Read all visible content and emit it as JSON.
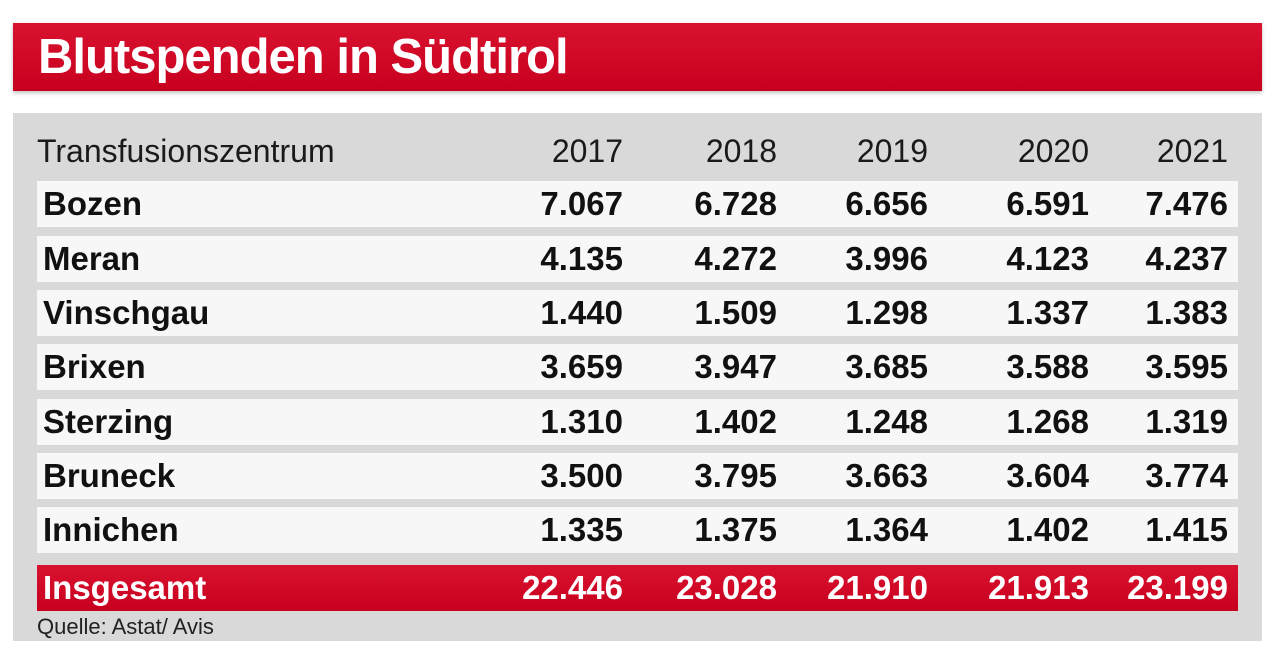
{
  "title": "Blutspenden in Südtirol",
  "header": {
    "label": "Transfusionszentrum",
    "years": [
      "2017",
      "2018",
      "2019",
      "2020",
      "2021"
    ]
  },
  "rows": [
    {
      "label": "Bozen",
      "values": [
        "7.067",
        "6.728",
        "6.656",
        "6.591",
        "7.476"
      ]
    },
    {
      "label": "Meran",
      "values": [
        "4.135",
        "4.272",
        "3.996",
        "4.123",
        "4.237"
      ]
    },
    {
      "label": "Vinschgau",
      "values": [
        "1.440",
        "1.509",
        "1.298",
        "1.337",
        "1.383"
      ]
    },
    {
      "label": "Brixen",
      "values": [
        "3.659",
        "3.947",
        "3.685",
        "3.588",
        "3.595"
      ]
    },
    {
      "label": "Sterzing",
      "values": [
        "1.310",
        "1.402",
        "1.248",
        "1.268",
        "1.319"
      ]
    },
    {
      "label": "Bruneck",
      "values": [
        "3.500",
        "3.795",
        "3.663",
        "3.604",
        "3.774"
      ]
    },
    {
      "label": "Innichen",
      "values": [
        "1.335",
        "1.375",
        "1.364",
        "1.402",
        "1.415"
      ]
    }
  ],
  "total": {
    "label": "Insgesamt",
    "values": [
      "22.446",
      "23.028",
      "21.910",
      "21.913",
      "23.199"
    ]
  },
  "source": "Quelle: Astat/ Avis",
  "colors": {
    "accent": "#c8001f",
    "panel": "#d9d9d9",
    "row": "#f7f7f7"
  },
  "chart_data": {
    "type": "table",
    "title": "Blutspenden in Südtirol",
    "columns": [
      "Transfusionszentrum",
      "2017",
      "2018",
      "2019",
      "2020",
      "2021"
    ],
    "rows": [
      [
        "Bozen",
        7067,
        6728,
        6656,
        6591,
        7476
      ],
      [
        "Meran",
        4135,
        4272,
        3996,
        4123,
        4237
      ],
      [
        "Vinschgau",
        1440,
        1509,
        1298,
        1337,
        1383
      ],
      [
        "Brixen",
        3659,
        3947,
        3685,
        3588,
        3595
      ],
      [
        "Sterzing",
        1310,
        1402,
        1248,
        1268,
        1319
      ],
      [
        "Bruneck",
        3500,
        3795,
        3663,
        3604,
        3774
      ],
      [
        "Innichen",
        1335,
        1375,
        1364,
        1402,
        1415
      ],
      [
        "Insgesamt",
        22446,
        23028,
        21910,
        21913,
        23199
      ]
    ],
    "source": "Quelle: Astat/ Avis"
  }
}
